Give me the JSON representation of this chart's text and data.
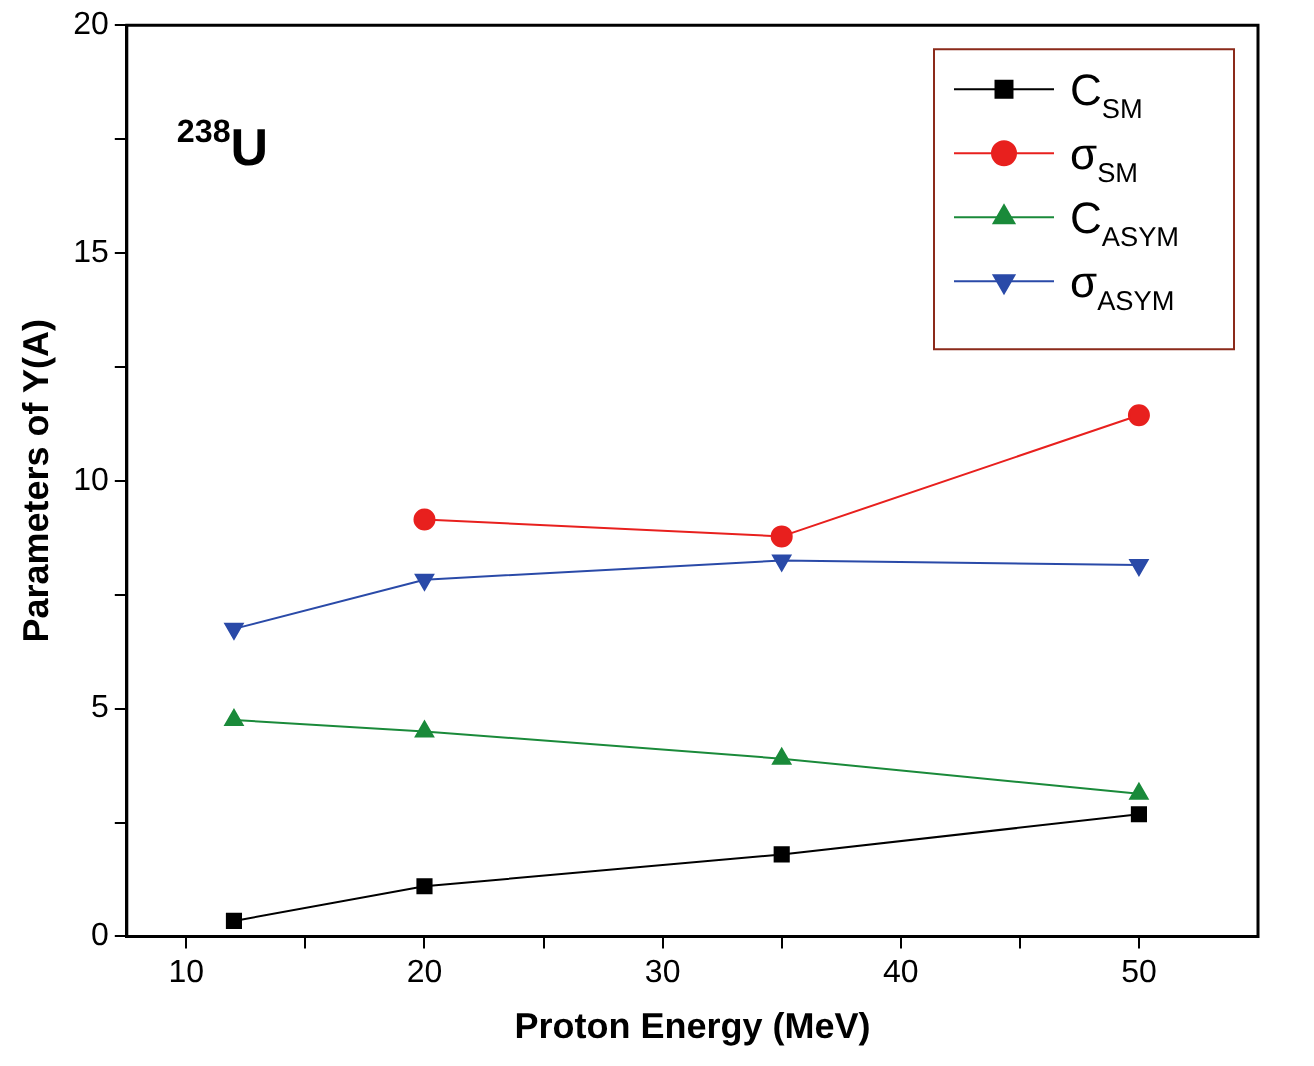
{
  "chart_data": {
    "type": "line",
    "xlabel": "Proton Energy (MeV)",
    "ylabel": "Parameters of Y(A)",
    "annotations": [
      "$^{238}$U"
    ],
    "xlim": [
      7.5,
      55
    ],
    "xticks": [
      10,
      {
        "value": 15,
        "label": null
      },
      20,
      {
        "value": 25,
        "label": null
      },
      30,
      {
        "value": 35,
        "label": null
      },
      40,
      {
        "value": 45,
        "label": null
      },
      50
    ],
    "ylim": [
      0,
      20
    ],
    "yticks": [
      0,
      {
        "value": 2.5,
        "label": null
      },
      5,
      {
        "value": 7.5,
        "label": null
      },
      10,
      {
        "value": 12.5,
        "label": null
      },
      15,
      {
        "value": 17.5,
        "label": null
      },
      20
    ],
    "grid": false,
    "legend": "top right",
    "line_style": "solid",
    "series": [
      {
        "name": "C$_{SM}$",
        "color": "#000000",
        "marker": "square",
        "x": [
          12,
          20,
          35,
          50
        ],
        "values": [
          0.34,
          1.1,
          1.8,
          2.68
        ]
      },
      {
        "name": "σ$_{SM}$",
        "color": "#e8201e",
        "marker": "circle",
        "x": [
          20,
          35,
          50
        ],
        "values": [
          9.15,
          8.78,
          11.44
        ]
      },
      {
        "name": "C$_{ASYM}$",
        "color": "#1a8a3a",
        "marker": "triangle",
        "x": [
          12,
          20,
          35,
          50
        ],
        "values": [
          4.75,
          4.5,
          3.9,
          3.13
        ]
      },
      {
        "name": "σ$_{ASYM}$",
        "color": "#2a4aa8",
        "marker": "triangle_down",
        "x": [
          12,
          20,
          35,
          50
        ],
        "values": [
          6.75,
          7.83,
          8.25,
          8.15
        ]
      }
    ]
  }
}
